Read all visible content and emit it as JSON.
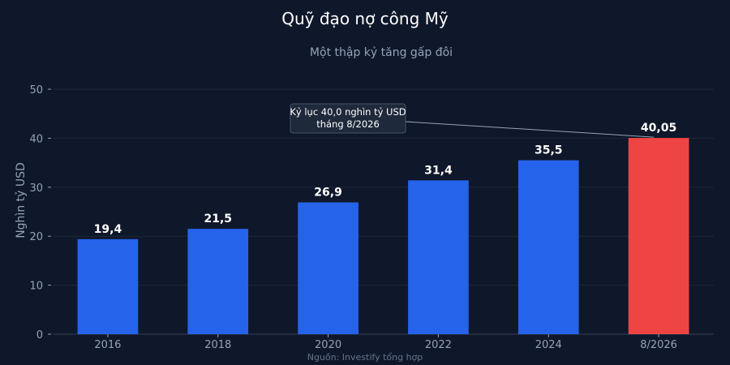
{
  "chart_data": {
    "type": "bar",
    "title": "Quỹ đạo nợ công Mỹ",
    "subtitle": "Một thập kỷ tăng gấp đôi",
    "xlabel": "",
    "ylabel": "Nghìn tỷ USD",
    "ylim": [
      0,
      50
    ],
    "yticks": [
      0,
      10,
      20,
      30,
      40,
      50
    ],
    "categories": [
      "2016",
      "2018",
      "2020",
      "2022",
      "2024",
      "8/2026"
    ],
    "values": [
      19.4,
      21.5,
      26.9,
      31.4,
      35.5,
      40.05
    ],
    "value_labels": [
      "19,4",
      "21,5",
      "26,9",
      "31,4",
      "35,5",
      "40,05"
    ],
    "bar_colors": [
      "#2563eb",
      "#2563eb",
      "#2563eb",
      "#2563eb",
      "#2563eb",
      "#ef4444"
    ],
    "annotation": {
      "lines": [
        "Kỷ lục 40,0 nghìn tỷ USD",
        "tháng 8/2026"
      ],
      "target_index": 5
    },
    "source": "Nguồn: Investify tổng hợp",
    "grid": true,
    "legend": "none"
  },
  "colors": {
    "background": "#0f172a",
    "grid": "#1e293b",
    "text": "#ffffff",
    "muted": "#94a3b8",
    "source": "#64748b",
    "annotation_bg": "#1e293b",
    "annotation_border": "#475569"
  }
}
